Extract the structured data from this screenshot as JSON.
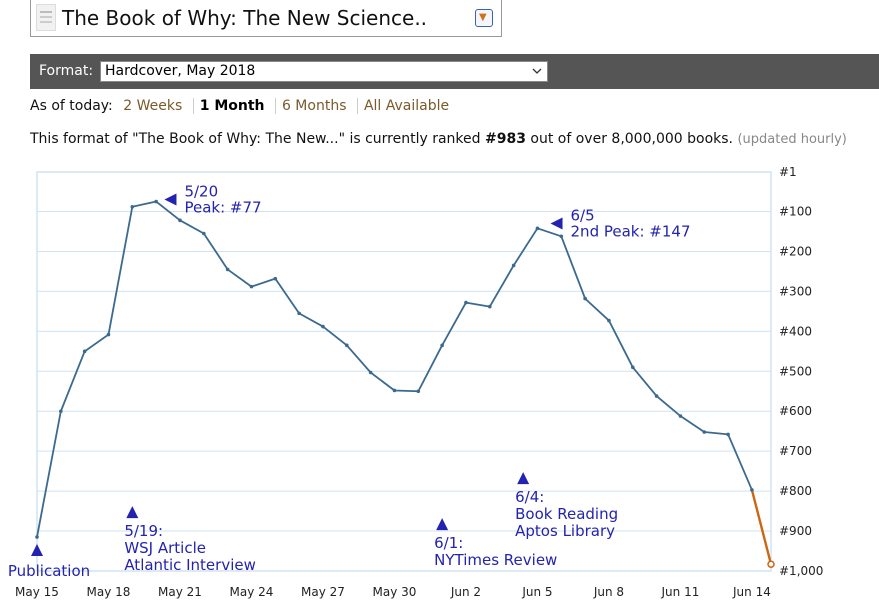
{
  "header": {
    "book_title": "The Book of Why: The New Science..",
    "thumb_icon": "book-cover-icon",
    "dropdown_icon": "chevron-down-icon"
  },
  "format": {
    "label": "Format:",
    "selected": "Hardcover, May 2018"
  },
  "period": {
    "label": "As of today:",
    "options": [
      "2 Weeks",
      "1 Month",
      "6 Months",
      "All Available"
    ],
    "active": "1 Month"
  },
  "rank_line": {
    "prefix": "This format of \"The Book of Why: The New...\" is currently ranked",
    "rank": "#983",
    "suffix": "out of over 8,000,000 books.",
    "note": "(updated hourly)"
  },
  "colors": {
    "line": "#3b6a8e",
    "line_recent": "#cc6611",
    "annotation": "#2323b0",
    "grid": "#cfe3f2",
    "format_bar": "#555555"
  },
  "chart_data": {
    "type": "line",
    "y_axis": {
      "label_side": "right",
      "inverted": true,
      "range": [
        1,
        1000
      ],
      "tick_values": [
        1,
        100,
        200,
        300,
        400,
        500,
        600,
        700,
        800,
        900,
        1000
      ],
      "tick_labels": [
        "#1",
        "#100",
        "#200",
        "#300",
        "#400",
        "#500",
        "#600",
        "#700",
        "#800",
        "#900",
        "#1,000"
      ]
    },
    "x_axis": {
      "range_days": [
        0,
        30.8
      ],
      "tick_labels": [
        "May 15",
        "May 18",
        "May 21",
        "May 24",
        "May 27",
        "May 30",
        "Jun 2",
        "Jun 5",
        "Jun 8",
        "Jun 11",
        "Jun 14"
      ],
      "tick_days": [
        0,
        3,
        6,
        9,
        12,
        15,
        18,
        21,
        24,
        27,
        30
      ]
    },
    "grid": true,
    "series": [
      {
        "x": [
          0,
          1,
          2,
          3,
          4,
          5,
          6,
          7,
          8,
          9,
          10,
          11,
          12,
          13,
          14,
          15,
          16,
          17,
          18,
          19,
          20,
          21,
          22,
          23,
          24,
          25,
          26,
          27,
          28,
          29,
          30
        ],
        "y": [
          915,
          600,
          450,
          408,
          88,
          75,
          122,
          155,
          245,
          288,
          268,
          355,
          388,
          435,
          503,
          548,
          550,
          435,
          328,
          338,
          235,
          142,
          162,
          318,
          373,
          490,
          562,
          612,
          652,
          658,
          797
        ]
      },
      {
        "x": [
          30,
          30.8
        ],
        "y": [
          797,
          983
        ]
      }
    ],
    "annotations": [
      {
        "lines": [
          "5/20",
          "Peak: #77"
        ],
        "arrow": "left",
        "at_day": 5.6,
        "at_rank": 70
      },
      {
        "lines": [
          "6/5",
          "2nd Peak: #147"
        ],
        "arrow": "left",
        "at_day": 21.8,
        "at_rank": 130
      },
      {
        "lines": [
          "Publication"
        ],
        "arrow": "up",
        "at_day": 0,
        "at_rank": 950
      },
      {
        "lines": [
          "5/19:",
          "WSJ Article",
          "Atlantic Interview"
        ],
        "arrow": "up",
        "at_day": 4,
        "at_rank": 855
      },
      {
        "lines": [
          "6/1:",
          "NYTimes Review"
        ],
        "arrow": "up",
        "at_day": 17,
        "at_rank": 885
      },
      {
        "lines": [
          "6/4:",
          "Book Reading",
          "Aptos Library"
        ],
        "arrow": "up",
        "at_day": 20.4,
        "at_rank": 770
      }
    ]
  }
}
